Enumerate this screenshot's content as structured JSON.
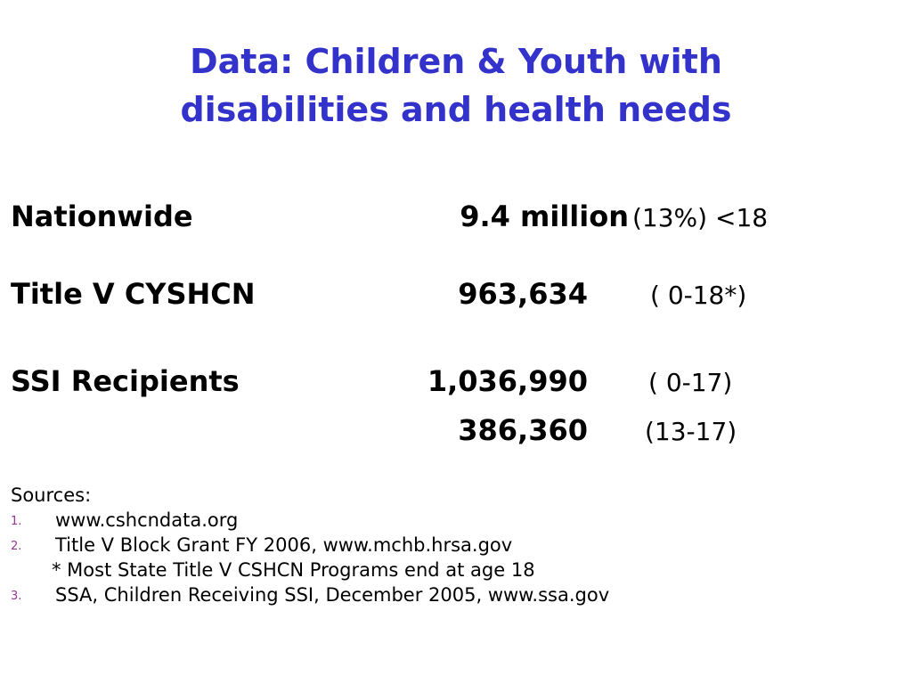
{
  "title": {
    "line1": "Data: Children & Youth with",
    "line2": "disabilities and health needs"
  },
  "stats": {
    "nationwide": {
      "label": "Nationwide",
      "value": "9.4 million",
      "note": "(13%) <18"
    },
    "title_v": {
      "label": "Title V CYSHCN",
      "value": "963,634",
      "note": "( 0-18*)"
    },
    "ssi": {
      "label": "SSI Recipients",
      "value": "1,036,990",
      "note": "( 0-17)"
    },
    "ssi_teen": {
      "value": "386,360",
      "note": "(13-17)"
    }
  },
  "sources": {
    "heading": "Sources:",
    "items": [
      {
        "num": "1.",
        "text": "www.cshcndata.org"
      },
      {
        "num": "2.",
        "text": "Title V Block Grant FY 2006, www.mchb.hrsa.gov"
      },
      {
        "num": "3.",
        "text": "SSA, Children Receiving SSI, December 2005, www.ssa.gov"
      }
    ],
    "footnote": "* Most State Title V CSHCN Programs end at age 18"
  },
  "colors": {
    "title": "#3333cc",
    "list_numbers": "#993399",
    "text": "#000000",
    "background": "#ffffff"
  }
}
